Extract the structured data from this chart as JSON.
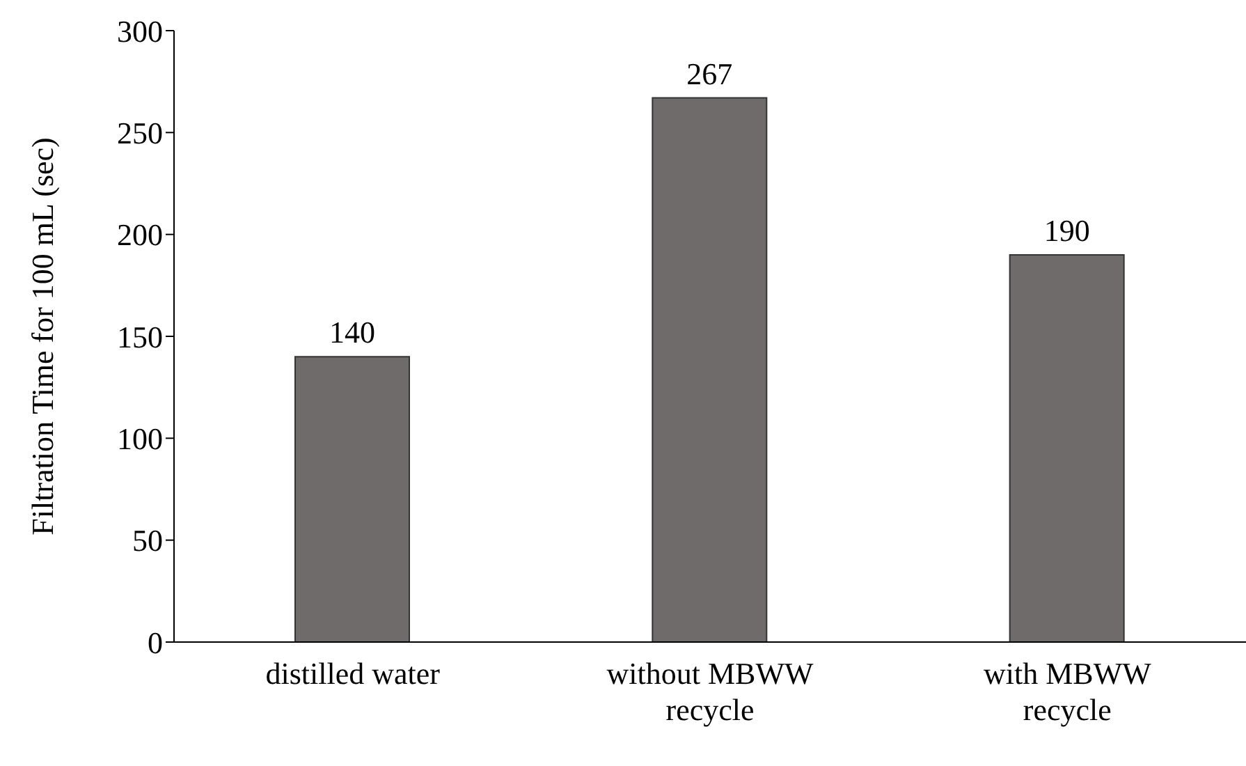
{
  "chart_data": {
    "type": "bar",
    "ylabel": "Filtration Time for 100 mL (sec)",
    "categories": [
      "distilled water",
      "without MBWW recycle",
      "with MBWW recycle"
    ],
    "values": [
      140,
      267,
      190
    ],
    "color": "#6f6b6b",
    "ylim": [
      0,
      300
    ],
    "yticks": [
      0,
      50,
      100,
      150,
      200,
      250,
      300
    ],
    "grid": false,
    "data_labels": true
  }
}
